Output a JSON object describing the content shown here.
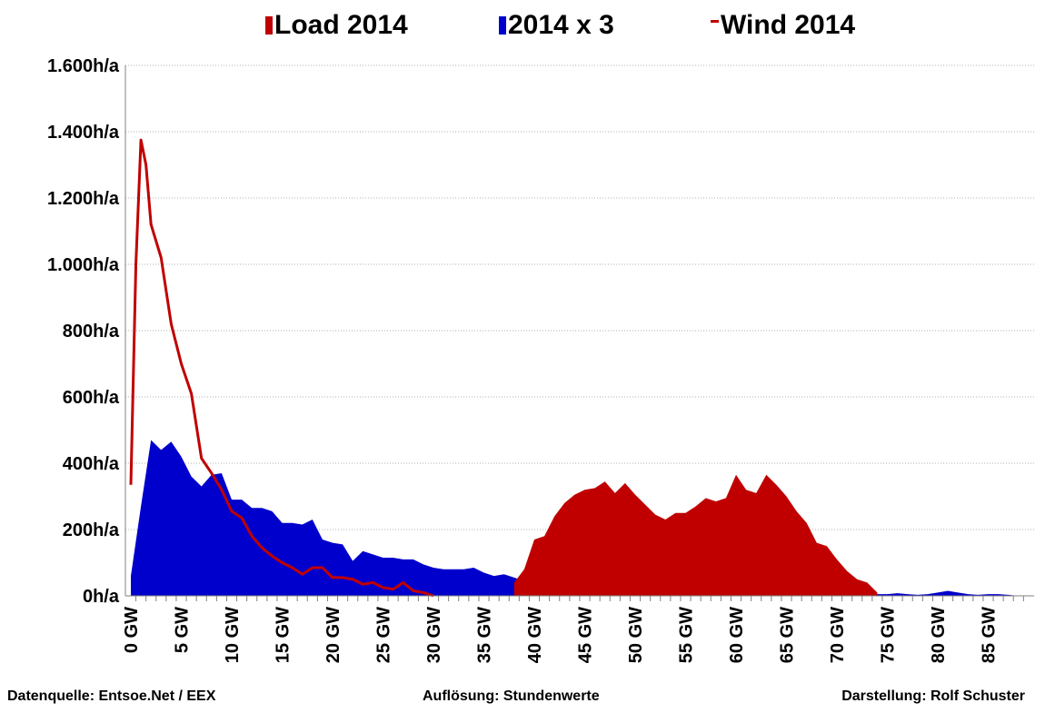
{
  "chart_data": {
    "type": "area",
    "title": "",
    "xlabel": "",
    "ylabel": "",
    "x_unit": "GW",
    "y_unit": "h/a",
    "xlim": [
      0,
      88
    ],
    "ylim": [
      0,
      1600
    ],
    "x_ticks": [
      "0 GW",
      "5 GW",
      "10 GW",
      "15 GW",
      "20 GW",
      "25 GW",
      "30 GW",
      "35 GW",
      "40 GW",
      "45 GW",
      "50 GW",
      "55 GW",
      "60 GW",
      "65 GW",
      "70 GW",
      "75 GW",
      "80 GW",
      "85 GW"
    ],
    "y_ticks": [
      "0h/a",
      "200h/a",
      "400h/a",
      "600h/a",
      "800h/a",
      "1.000h/a",
      "1.200h/a",
      "1.400h/a",
      "1.600h/a"
    ],
    "y_tick_values": [
      0,
      200,
      400,
      600,
      800,
      1000,
      1200,
      1400,
      1600
    ],
    "grid": true,
    "legend_position": "top",
    "legend": [
      {
        "label": "Load 2014",
        "marker": "bar",
        "color": "#c00000"
      },
      {
        "label": "2014 x 3",
        "marker": "bar",
        "color": "#0000cc"
      },
      {
        "label": "Wind 2014",
        "marker": "line",
        "color": "#c00000"
      }
    ],
    "series": [
      {
        "name": "2014 x 3",
        "kind": "area",
        "color": "#0000cc",
        "x": [
          0,
          1,
          2,
          3,
          4,
          5,
          6,
          7,
          8,
          9,
          10,
          11,
          12,
          13,
          14,
          15,
          16,
          17,
          18,
          19,
          20,
          21,
          22,
          23,
          24,
          25,
          26,
          27,
          28,
          29,
          30,
          31,
          32,
          33,
          34,
          35,
          36,
          37,
          38,
          39,
          40,
          41,
          42,
          43,
          44,
          45,
          46,
          47,
          48,
          49,
          50,
          51,
          52,
          53,
          54,
          55,
          56,
          57,
          58,
          59,
          60,
          61,
          62,
          63,
          64,
          65,
          66,
          67,
          68,
          69,
          70,
          71,
          72,
          73,
          74,
          75,
          76,
          77,
          78,
          79,
          80,
          81,
          82,
          83,
          84,
          85,
          86,
          87,
          88
        ],
        "values": [
          60,
          270,
          470,
          440,
          465,
          420,
          360,
          330,
          365,
          370,
          290,
          290,
          265,
          265,
          255,
          220,
          220,
          215,
          230,
          170,
          160,
          155,
          105,
          135,
          125,
          115,
          115,
          110,
          110,
          95,
          85,
          80,
          80,
          80,
          85,
          70,
          60,
          65,
          55,
          45,
          60,
          45,
          40,
          50,
          35,
          45,
          30,
          30,
          35,
          30,
          25,
          20,
          25,
          30,
          35,
          30,
          30,
          30,
          35,
          30,
          25,
          25,
          25,
          20,
          20,
          15,
          15,
          15,
          10,
          10,
          10,
          10,
          10,
          5,
          5,
          5,
          8,
          5,
          3,
          5,
          10,
          15,
          10,
          5,
          3,
          5,
          5,
          3,
          0
        ]
      },
      {
        "name": "Load 2014",
        "kind": "area",
        "color": "#c00000",
        "x": [
          38,
          39,
          40,
          41,
          42,
          43,
          44,
          45,
          46,
          47,
          48,
          49,
          50,
          51,
          52,
          53,
          54,
          55,
          56,
          57,
          58,
          59,
          60,
          61,
          62,
          63,
          64,
          65,
          66,
          67,
          68,
          69,
          70,
          71,
          72,
          73,
          74
        ],
        "values": [
          40,
          80,
          170,
          180,
          240,
          280,
          305,
          320,
          325,
          345,
          310,
          340,
          305,
          275,
          245,
          230,
          250,
          250,
          270,
          295,
          285,
          295,
          365,
          320,
          310,
          365,
          335,
          300,
          255,
          220,
          160,
          150,
          110,
          75,
          50,
          40,
          10
        ]
      },
      {
        "name": "Wind 2014",
        "kind": "line",
        "color": "#c00000",
        "x": [
          0,
          0.5,
          1,
          1.5,
          2,
          3,
          4,
          5,
          6,
          7,
          8,
          9,
          10,
          11,
          12,
          13,
          14,
          15,
          16,
          17,
          18,
          19,
          20,
          21,
          22,
          23,
          24,
          25,
          26,
          27,
          28,
          29,
          30
        ],
        "values": [
          335,
          1000,
          1375,
          1300,
          1120,
          1020,
          820,
          700,
          610,
          415,
          370,
          320,
          255,
          235,
          180,
          145,
          120,
          100,
          85,
          65,
          85,
          85,
          55,
          55,
          50,
          35,
          40,
          25,
          20,
          40,
          15,
          10,
          0
        ]
      }
    ]
  },
  "footer": {
    "source": "Datenquelle:  Entsoe.Net   / EEX",
    "resolution": "Auflösung: Stundenwerte",
    "author": "Darstellung: Rolf Schuster"
  }
}
